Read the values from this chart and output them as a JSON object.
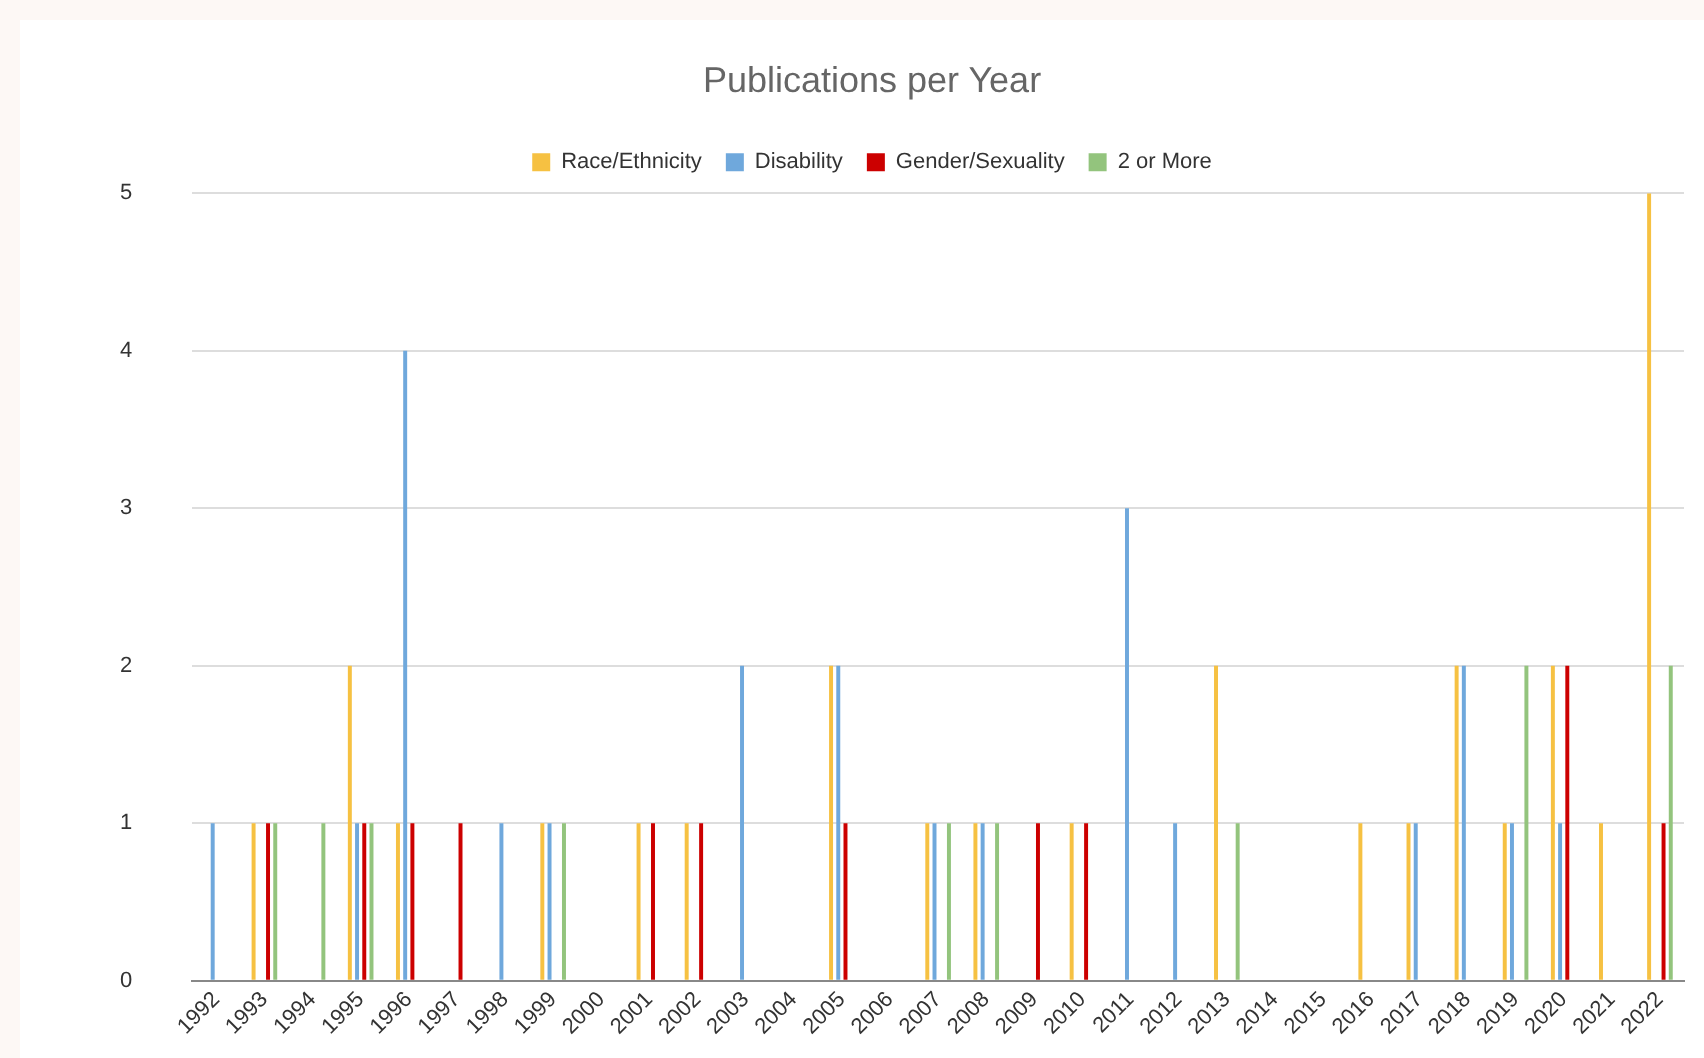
{
  "chart_data": {
    "type": "bar",
    "title": "Publications per Year",
    "categories": [
      "1992",
      "1993",
      "1994",
      "1995",
      "1996",
      "1997",
      "1998",
      "1999",
      "2000",
      "2001",
      "2002",
      "2003",
      "2004",
      "2005",
      "2006",
      "2007",
      "2008",
      "2009",
      "2010",
      "2011",
      "2012",
      "2013",
      "2014",
      "2015",
      "2016",
      "2017",
      "2018",
      "2019",
      "2020",
      "2021",
      "2022"
    ],
    "series": [
      {
        "name": "Race/Ethnicity",
        "color": "#f6c142",
        "values": [
          0,
          1,
          0,
          2,
          1,
          0,
          0,
          1,
          0,
          1,
          1,
          0,
          0,
          2,
          0,
          1,
          1,
          0,
          1,
          0,
          0,
          2,
          0,
          0,
          1,
          1,
          2,
          1,
          2,
          1,
          5
        ]
      },
      {
        "name": "Disability",
        "color": "#6fa8dc",
        "values": [
          1,
          0,
          0,
          1,
          4,
          0,
          1,
          1,
          0,
          0,
          0,
          2,
          0,
          2,
          0,
          1,
          1,
          0,
          0,
          3,
          1,
          0,
          0,
          0,
          0,
          1,
          2,
          1,
          1,
          0,
          0
        ]
      },
      {
        "name": "Gender/Sexuality",
        "color": "#cc0000",
        "values": [
          0,
          1,
          0,
          1,
          1,
          1,
          0,
          0,
          0,
          1,
          1,
          0,
          0,
          1,
          0,
          0,
          0,
          1,
          1,
          0,
          0,
          0,
          0,
          0,
          0,
          0,
          0,
          0,
          2,
          0,
          1
        ]
      },
      {
        "name": "2 or More",
        "color": "#93c47d",
        "values": [
          0,
          1,
          1,
          1,
          0,
          0,
          0,
          1,
          0,
          0,
          0,
          0,
          0,
          0,
          0,
          1,
          1,
          0,
          0,
          0,
          0,
          1,
          0,
          0,
          0,
          0,
          0,
          2,
          0,
          0,
          2
        ]
      }
    ],
    "ylim": [
      0,
      5
    ],
    "yticks": [
      0,
      1,
      2,
      3,
      4,
      5
    ],
    "grid": "y",
    "legend": "top"
  }
}
